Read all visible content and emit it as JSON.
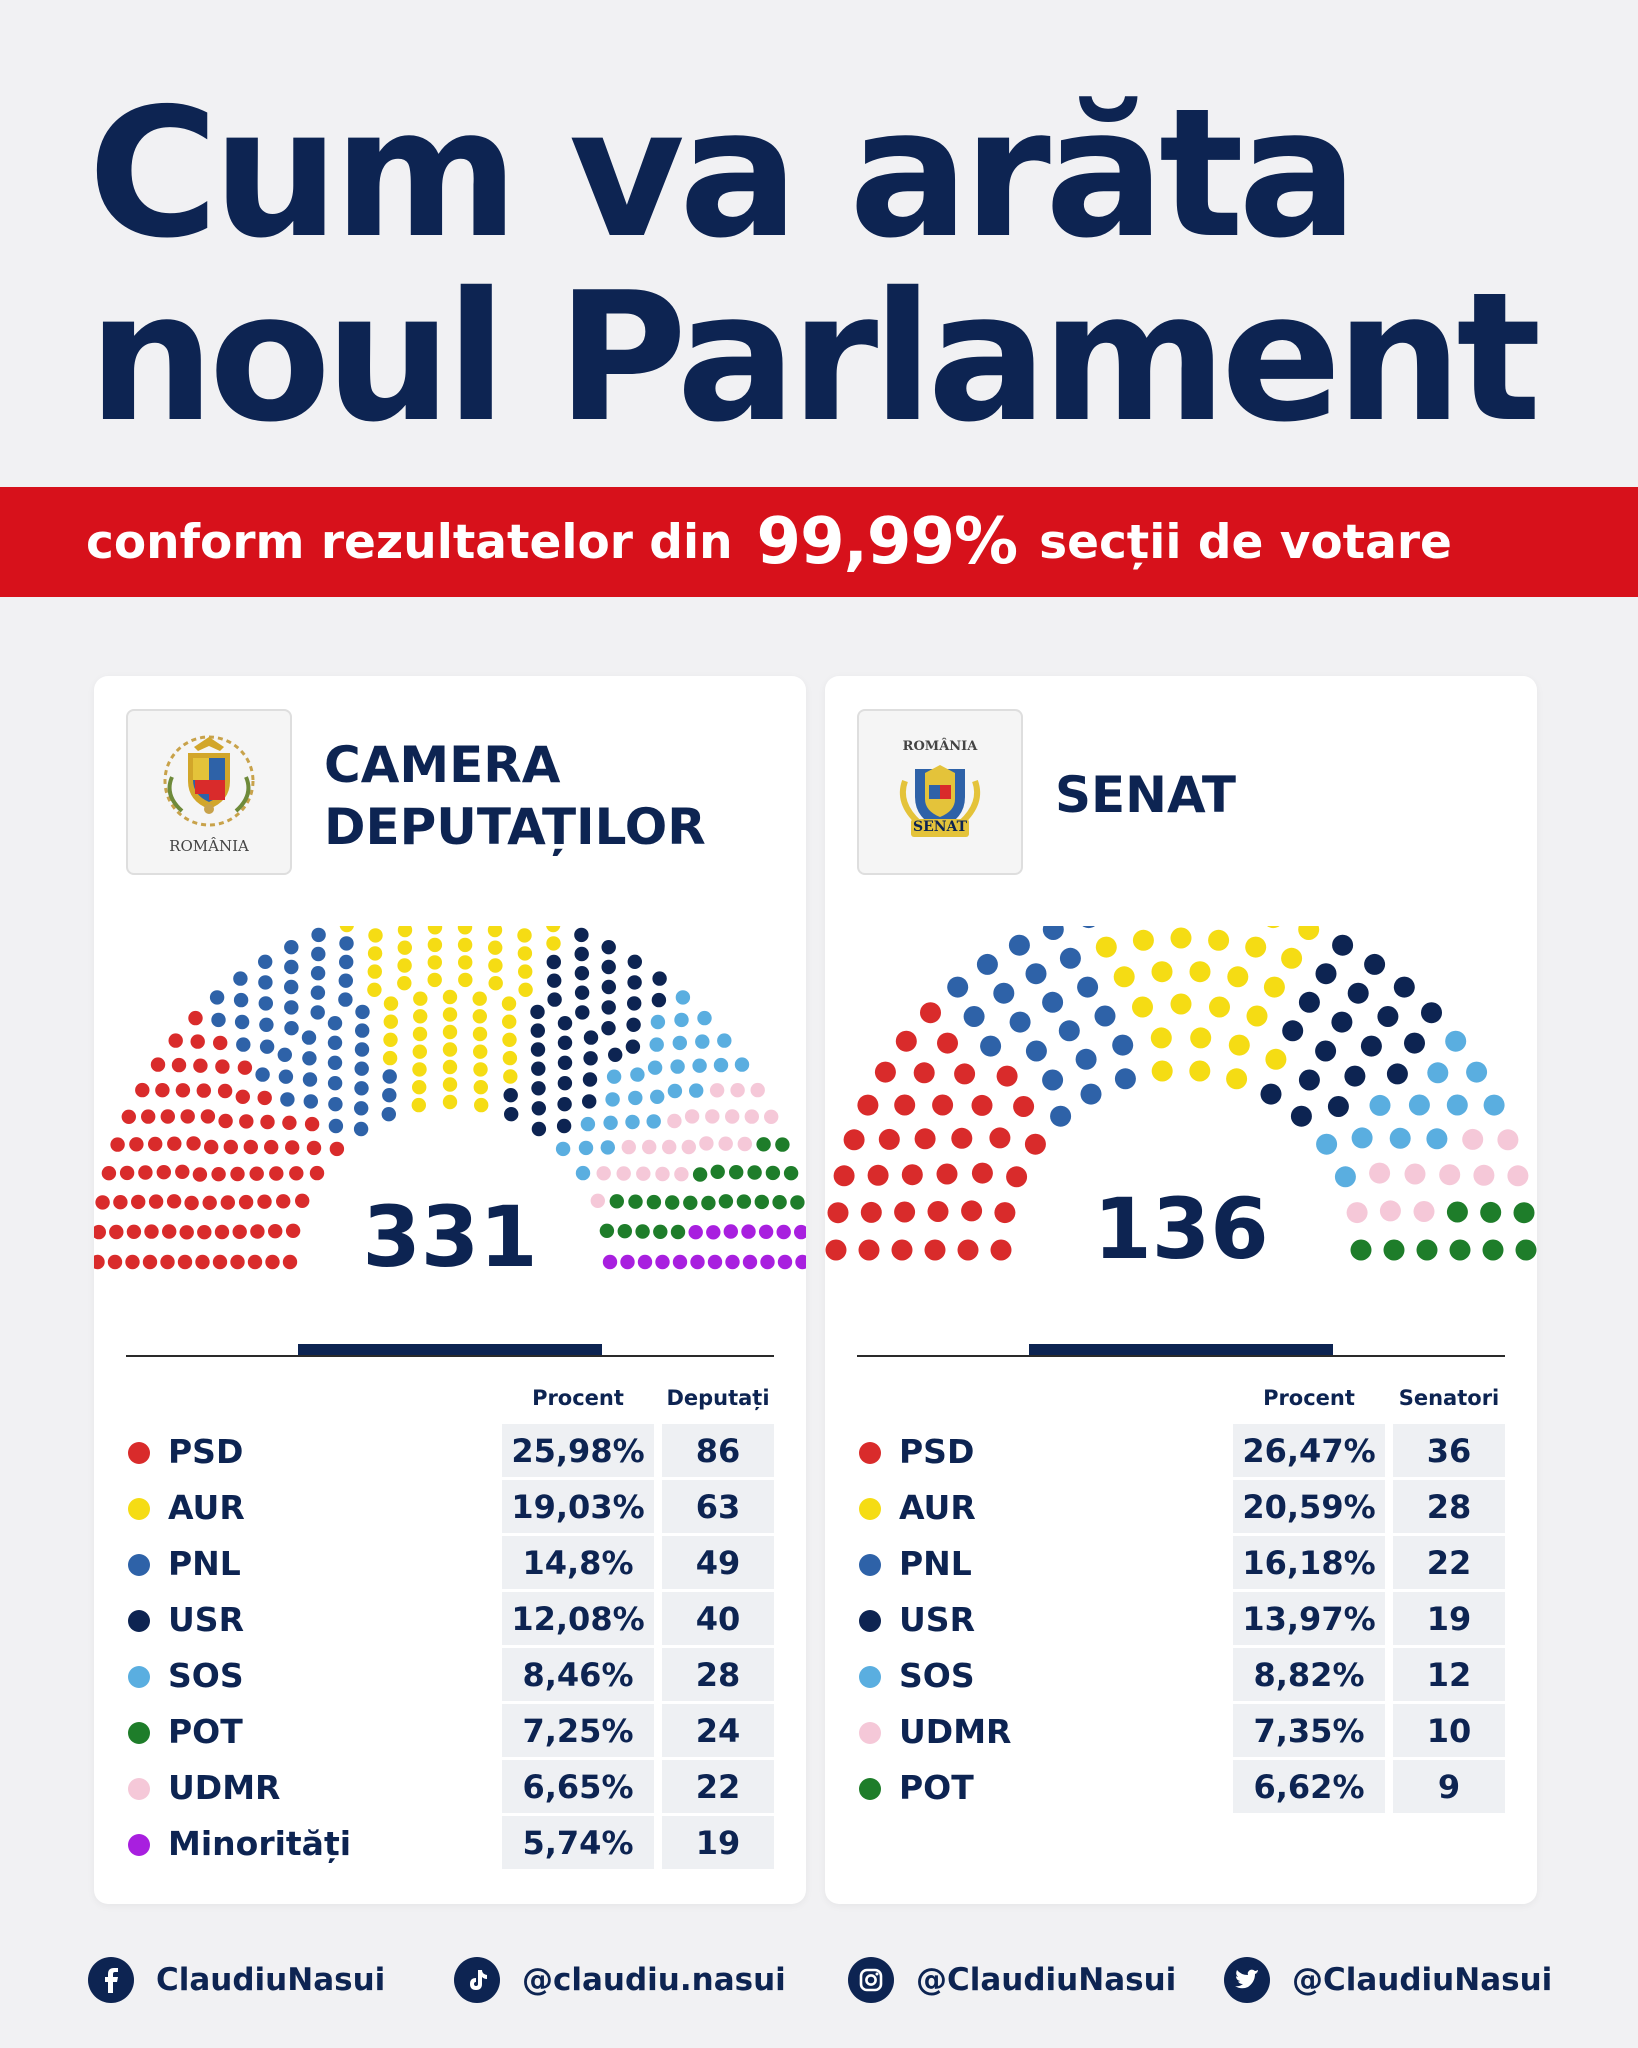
{
  "title": {
    "line1": "Cum va arăta",
    "line2": "noul Parlament"
  },
  "banner": {
    "prefix": "conform rezultatelor din",
    "highlight": "99,99%",
    "suffix": "secții de votare"
  },
  "colors": {
    "PSD": "#d92b2b",
    "AUR": "#f5dc14",
    "PNL": "#2e62a8",
    "USR": "#0d2452",
    "SOS": "#5aaee0",
    "POT": "#1e7d2a",
    "UDMR": "#f5c8d8",
    "Minorități": "#a81fdf"
  },
  "chambers": [
    {
      "emblem": {
        "name": "coat-of-arms",
        "caption": "ROMÂNIA"
      },
      "name_lines": [
        "CAMERA",
        "DEPUTAȚILOR"
      ],
      "total": "331",
      "col_percent": "Procent",
      "col_seats": "Deputați",
      "rows": [
        {
          "party": "PSD",
          "percent": "25,98%",
          "seats": "86"
        },
        {
          "party": "AUR",
          "percent": "19,03%",
          "seats": "63"
        },
        {
          "party": "PNL",
          "percent": "14,8%",
          "seats": "49"
        },
        {
          "party": "USR",
          "percent": "12,08%",
          "seats": "40"
        },
        {
          "party": "SOS",
          "percent": "8,46%",
          "seats": "28"
        },
        {
          "party": "POT",
          "percent": "7,25%",
          "seats": "24"
        },
        {
          "party": "UDMR",
          "percent": "6,65%",
          "seats": "22"
        },
        {
          "party": "Minorități",
          "percent": "5,74%",
          "seats": "19"
        }
      ]
    },
    {
      "emblem": {
        "name": "senate-emblem",
        "caption_top": "ROMÂNIA",
        "caption": "SENAT"
      },
      "name_lines": [
        "SENAT"
      ],
      "total": "136",
      "col_percent": "Procent",
      "col_seats": "Senatori",
      "rows": [
        {
          "party": "PSD",
          "percent": "26,47%",
          "seats": "36"
        },
        {
          "party": "AUR",
          "percent": "20,59%",
          "seats": "28"
        },
        {
          "party": "PNL",
          "percent": "16,18%",
          "seats": "22"
        },
        {
          "party": "USR",
          "percent": "13,97%",
          "seats": "19"
        },
        {
          "party": "SOS",
          "percent": "8,82%",
          "seats": "12"
        },
        {
          "party": "UDMR",
          "percent": "7,35%",
          "seats": "10"
        },
        {
          "party": "POT",
          "percent": "6,62%",
          "seats": "9"
        }
      ]
    }
  ],
  "chart_data": [
    {
      "type": "parliament",
      "title": "CAMERA DEPUTAȚILOR",
      "total": 331,
      "categories": [
        "PSD",
        "AUR",
        "PNL",
        "USR",
        "SOS",
        "POT",
        "UDMR",
        "Minorități"
      ],
      "seat_order": [
        "PSD",
        "PNL",
        "AUR",
        "USR",
        "SOS",
        "UDMR",
        "POT",
        "Minorități"
      ],
      "percent": [
        25.98,
        19.03,
        14.8,
        12.08,
        8.46,
        7.25,
        6.65,
        5.74
      ],
      "values": [
        86,
        63,
        49,
        40,
        28,
        24,
        22,
        19
      ]
    },
    {
      "type": "parliament",
      "title": "SENAT",
      "total": 136,
      "categories": [
        "PSD",
        "AUR",
        "PNL",
        "USR",
        "SOS",
        "UDMR",
        "POT"
      ],
      "seat_order": [
        "PSD",
        "PNL",
        "AUR",
        "USR",
        "SOS",
        "UDMR",
        "POT"
      ],
      "percent": [
        26.47,
        20.59,
        16.18,
        13.97,
        8.82,
        7.35,
        6.62
      ],
      "values": [
        36,
        28,
        22,
        19,
        12,
        10,
        9
      ]
    }
  ],
  "footer": [
    {
      "icon": "facebook-icon",
      "text": "ClaudiuNasui"
    },
    {
      "icon": "tiktok-icon",
      "text": "@claudiu.nasui"
    },
    {
      "icon": "instagram-icon",
      "text": "@ClaudiuNasui"
    },
    {
      "icon": "twitter-icon",
      "text": "@ClaudiuNasui"
    }
  ]
}
